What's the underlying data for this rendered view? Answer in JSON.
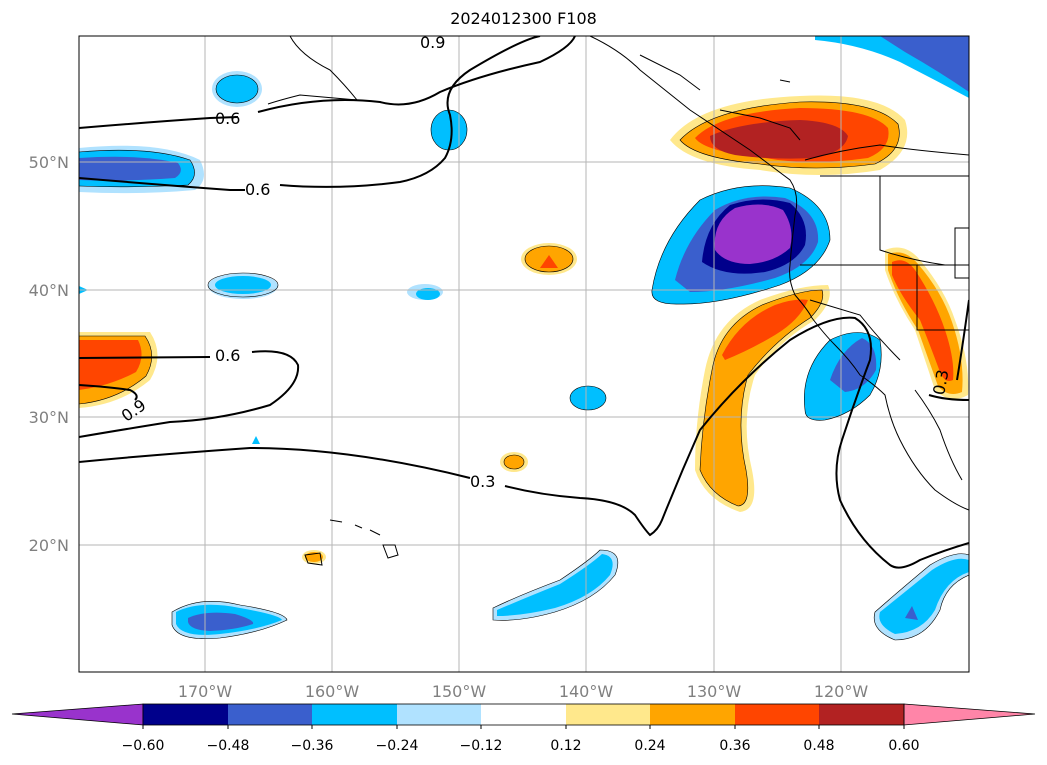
{
  "title": "2024012300 F108",
  "map": {
    "lat_labels": [
      "50°N",
      "40°N",
      "30°N",
      "20°N"
    ],
    "lon_labels": [
      "170°W",
      "160°W",
      "150°W",
      "140°W",
      "130°W",
      "120°W"
    ],
    "contour_labels": [
      "0.9",
      "0.6",
      "0.6",
      "0.6",
      "0.9",
      "0.3",
      "0.3"
    ],
    "label_color": "#808080"
  },
  "colorbar": {
    "ticks": [
      "−0.60",
      "−0.48",
      "−0.36",
      "−0.24",
      "−0.12",
      "0.12",
      "0.24",
      "0.36",
      "0.48",
      "0.60"
    ],
    "colors": [
      "#9933cc",
      "#00008b",
      "#3a5fcd",
      "#00bfff",
      "#b0e2ff",
      "#ffffff",
      "#ffe88c",
      "#ffa500",
      "#ff4500",
      "#b22222",
      "#ff85a8"
    ]
  }
}
